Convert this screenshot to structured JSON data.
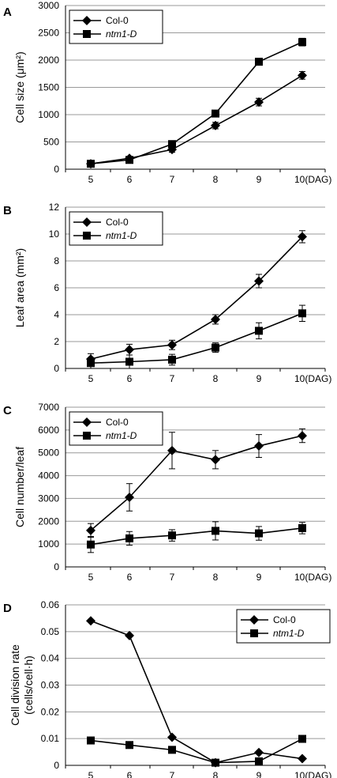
{
  "colors": {
    "line": "#000000",
    "grid": "#999999",
    "background": "#ffffff"
  },
  "chart_data": [
    {
      "panel": "A",
      "type": "line",
      "x": [
        "5",
        "6",
        "7",
        "8",
        "9",
        "10(DAG)"
      ],
      "ylim": [
        0,
        3000
      ],
      "yticks": [
        "0",
        "500",
        "1000",
        "1500",
        "2000",
        "2500",
        "3000"
      ],
      "ylabel_lines": [
        "Cell size (μm²)"
      ],
      "grid": true,
      "legend": "top-left",
      "series": [
        {
          "name": "Col-0",
          "marker": "diamond",
          "values": [
            100,
            200,
            360,
            800,
            1230,
            1720
          ],
          "errors": [
            20,
            30,
            50,
            60,
            70,
            70
          ]
        },
        {
          "name": "ntm1-D",
          "marker": "square",
          "values": [
            100,
            170,
            460,
            1020,
            1970,
            2330
          ],
          "errors": [
            20,
            20,
            50,
            40,
            60,
            70
          ]
        }
      ]
    },
    {
      "panel": "B",
      "type": "line",
      "x": [
        "5",
        "6",
        "7",
        "8",
        "9",
        "10(DAG)"
      ],
      "ylim": [
        0,
        12
      ],
      "yticks": [
        "0",
        "2",
        "4",
        "6",
        "8",
        "10",
        "12"
      ],
      "ylabel_lines": [
        "Leaf area (mm²)"
      ],
      "grid": true,
      "legend": "top-left",
      "series": [
        {
          "name": "Col-0",
          "marker": "diamond",
          "values": [
            0.7,
            1.4,
            1.75,
            3.65,
            6.5,
            9.8
          ],
          "errors": [
            0.4,
            0.4,
            0.35,
            0.35,
            0.5,
            0.45
          ]
        },
        {
          "name": "ntm1-D",
          "marker": "square",
          "values": [
            0.4,
            0.5,
            0.65,
            1.55,
            2.8,
            4.1
          ],
          "errors": [
            0.4,
            0.5,
            0.4,
            0.35,
            0.6,
            0.6
          ]
        }
      ]
    },
    {
      "panel": "C",
      "type": "line",
      "x": [
        "5",
        "6",
        "7",
        "8",
        "9",
        "10(DAG)"
      ],
      "ylim": [
        0,
        7000
      ],
      "yticks": [
        "0",
        "1000",
        "2000",
        "3000",
        "4000",
        "5000",
        "6000",
        "7000"
      ],
      "ylabel_lines": [
        "Cell number/leaf"
      ],
      "grid": true,
      "legend": "top-left",
      "series": [
        {
          "name": "Col-0",
          "marker": "diamond",
          "values": [
            1600,
            3050,
            5100,
            4700,
            5300,
            5750
          ],
          "errors": [
            300,
            600,
            800,
            400,
            500,
            300
          ]
        },
        {
          "name": "ntm1-D",
          "marker": "square",
          "values": [
            980,
            1250,
            1380,
            1580,
            1470,
            1700
          ],
          "errors": [
            350,
            300,
            250,
            400,
            300,
            250
          ]
        }
      ]
    },
    {
      "panel": "D",
      "type": "line",
      "x": [
        "5",
        "6",
        "7",
        "8",
        "9",
        "10(DAG)"
      ],
      "ylim": [
        0,
        0.06
      ],
      "yticks": [
        "0",
        "0.01",
        "0.02",
        "0.03",
        "0.04",
        "0.05",
        "0.06"
      ],
      "ylabel_lines": [
        "Cell division rate",
        "(cells/cell·h)"
      ],
      "grid": true,
      "legend": "top-right",
      "series": [
        {
          "name": "Col-0",
          "marker": "diamond",
          "values": [
            0.054,
            0.0485,
            0.0105,
            0.001,
            0.0048,
            0.0025
          ],
          "errors": [
            0,
            0,
            0,
            0,
            0,
            0
          ]
        },
        {
          "name": "ntm1-D",
          "marker": "square",
          "values": [
            0.0093,
            0.0076,
            0.0058,
            0.001,
            0.0015,
            0.0099
          ],
          "errors": [
            0,
            0,
            0,
            0,
            0,
            0
          ]
        }
      ]
    }
  ]
}
